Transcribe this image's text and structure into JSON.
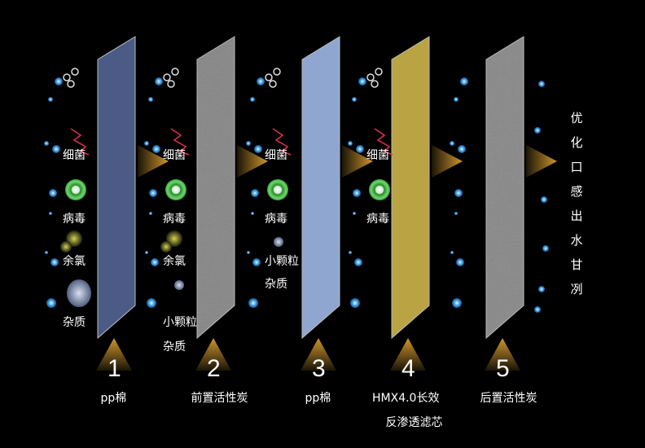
{
  "stages": [
    {
      "number": "1",
      "label_lines": [
        "pp棉"
      ],
      "color": "#4b5b86",
      "removes": [
        "细菌",
        "病毒",
        "余氯",
        "杂质"
      ]
    },
    {
      "number": "2",
      "label_lines": [
        "前置活性炭"
      ],
      "color": "#8a8a8a",
      "removes": [
        "细菌",
        "病毒",
        "余氯",
        "小颗粒",
        "杂质"
      ]
    },
    {
      "number": "3",
      "label_lines": [
        "pp棉"
      ],
      "color": "#8ea6d0",
      "removes": [
        "细菌",
        "病毒",
        "小颗粒",
        "杂质"
      ]
    },
    {
      "number": "4",
      "label_lines": [
        "HMX4.0长效",
        "反渗透滤芯"
      ],
      "color": "#b9a342",
      "removes": [
        "细菌",
        "病毒"
      ]
    },
    {
      "number": "5",
      "label_lines": [
        "后置活性炭"
      ],
      "color": "#8c8c8c",
      "removes": []
    }
  ],
  "output_text": "优化口感出水甘冽",
  "arrow_color": "#c8902a"
}
